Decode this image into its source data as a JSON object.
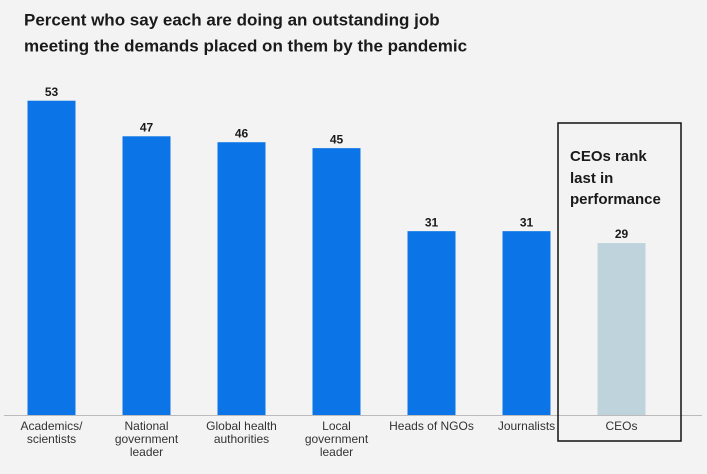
{
  "chart_data": {
    "type": "bar",
    "title": [
      "Percent who say each are doing an outstanding job",
      "meeting the demands placed on them by the pandemic"
    ],
    "categories": [
      [
        "Academics/",
        "scientists"
      ],
      [
        "National",
        "government",
        "leader"
      ],
      [
        "Global health",
        "authorities"
      ],
      [
        "Local",
        "government",
        "leader"
      ],
      [
        "Heads of NGOs"
      ],
      [
        "Journalists"
      ],
      [
        "CEOs"
      ]
    ],
    "values": [
      53,
      47,
      46,
      45,
      31,
      31,
      29
    ],
    "colors": [
      "#0b74e6",
      "#0b74e6",
      "#0b74e6",
      "#0b74e6",
      "#0b74e6",
      "#0b74e6",
      "#bfd3dc"
    ],
    "annotation": [
      "CEOs rank",
      "last in",
      "performance"
    ]
  }
}
